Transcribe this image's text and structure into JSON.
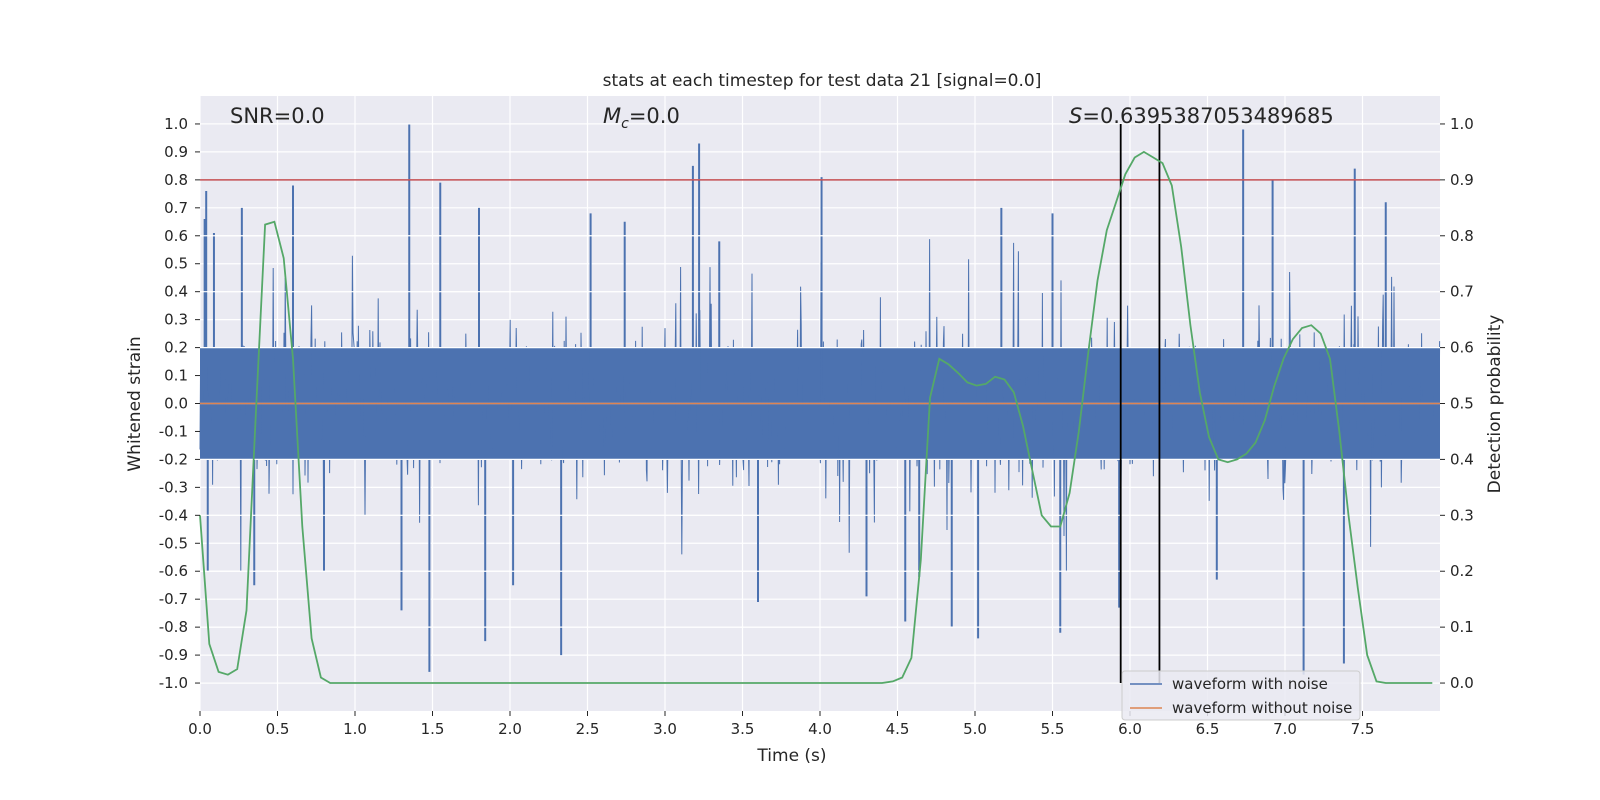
{
  "chart_data": {
    "type": "line",
    "title": "stats at each timestep for test data 21 [signal=0.0]",
    "xlabel": "Time (s)",
    "ylabel_left": "Whitened strain",
    "ylabel_right": "Detection probability",
    "xlim": [
      0.0,
      8.0
    ],
    "ylim_left": [
      -1.1,
      1.1
    ],
    "ylim_right": [
      -0.05,
      1.05
    ],
    "x_ticks": [
      "0.0",
      "0.5",
      "1.0",
      "1.5",
      "2.0",
      "2.5",
      "3.0",
      "3.5",
      "4.0",
      "4.5",
      "5.0",
      "5.5",
      "6.0",
      "6.5",
      "7.0",
      "7.5"
    ],
    "y_ticks_left": [
      "-1.0",
      "-0.9",
      "-0.8",
      "-0.7",
      "-0.6",
      "-0.5",
      "-0.4",
      "-0.3",
      "-0.2",
      "-0.1",
      "0.0",
      "0.1",
      "0.2",
      "0.3",
      "0.4",
      "0.5",
      "0.6",
      "0.7",
      "0.8",
      "0.9",
      "1.0"
    ],
    "y_ticks_right": [
      "0.0",
      "0.1",
      "0.2",
      "0.3",
      "0.4",
      "0.5",
      "0.6",
      "0.7",
      "0.8",
      "0.9",
      "1.0"
    ],
    "grid": true,
    "annotations": {
      "snr": "SNR=0.0",
      "mc_symbol": "M",
      "mc_sub": "c",
      "mc_value": "=0.0",
      "s_symbol": "S",
      "s_value": "=0.6395387053489685"
    },
    "legend": {
      "placement": "lower-right",
      "entries": [
        {
          "label": "waveform with noise",
          "color": "#4c72b0"
        },
        {
          "label": "waveform without noise",
          "color": "#dd8452"
        }
      ]
    },
    "threshold": {
      "axis": "right",
      "value": 0.9,
      "color": "#c44e52"
    },
    "vlines": [
      5.94,
      6.19
    ],
    "noise_series": {
      "name": "waveform with noise",
      "color": "#4c72b0",
      "typical_upper": 0.2,
      "typical_lower": -0.2,
      "peaks": [
        {
          "x": 0.03,
          "y": 0.66
        },
        {
          "x": 0.05,
          "y": -0.6
        },
        {
          "x": 0.09,
          "y": 0.61
        },
        {
          "x": 0.04,
          "y": 0.76
        },
        {
          "x": 0.27,
          "y": 0.7
        },
        {
          "x": 0.35,
          "y": -0.65
        },
        {
          "x": 0.6,
          "y": 0.78
        },
        {
          "x": 0.8,
          "y": -0.6
        },
        {
          "x": 1.35,
          "y": 1.0
        },
        {
          "x": 1.3,
          "y": -0.74
        },
        {
          "x": 1.48,
          "y": -0.96
        },
        {
          "x": 1.55,
          "y": 0.79
        },
        {
          "x": 1.8,
          "y": 0.7
        },
        {
          "x": 1.84,
          "y": -0.85
        },
        {
          "x": 2.02,
          "y": -0.65
        },
        {
          "x": 2.33,
          "y": -0.9
        },
        {
          "x": 2.52,
          "y": 0.68
        },
        {
          "x": 2.74,
          "y": 0.65
        },
        {
          "x": 3.18,
          "y": 0.85
        },
        {
          "x": 3.22,
          "y": 0.93
        },
        {
          "x": 3.35,
          "y": 0.58
        },
        {
          "x": 3.6,
          "y": -0.71
        },
        {
          "x": 4.01,
          "y": 0.81
        },
        {
          "x": 4.3,
          "y": -0.69
        },
        {
          "x": 4.55,
          "y": -0.78
        },
        {
          "x": 4.64,
          "y": -0.62
        },
        {
          "x": 4.85,
          "y": -0.8
        },
        {
          "x": 5.02,
          "y": -0.84
        },
        {
          "x": 5.17,
          "y": 0.7
        },
        {
          "x": 5.55,
          "y": -0.82
        },
        {
          "x": 5.93,
          "y": -0.73
        },
        {
          "x": 5.5,
          "y": 0.68
        },
        {
          "x": 6.73,
          "y": 0.98
        },
        {
          "x": 6.56,
          "y": -0.63
        },
        {
          "x": 6.92,
          "y": 0.8
        },
        {
          "x": 7.12,
          "y": -0.97
        },
        {
          "x": 7.38,
          "y": -0.93
        },
        {
          "x": 7.45,
          "y": 0.84
        },
        {
          "x": 7.65,
          "y": 0.72
        }
      ]
    },
    "clean_series": {
      "name": "waveform without noise",
      "color": "#dd8452",
      "value": 0.0
    },
    "probability_series": {
      "color": "#55a868",
      "x": [
        0.0,
        0.06,
        0.12,
        0.18,
        0.24,
        0.3,
        0.36,
        0.42,
        0.48,
        0.54,
        0.6,
        0.66,
        0.72,
        0.78,
        0.84,
        0.9,
        1.5,
        2.5,
        3.5,
        4.4,
        4.47,
        4.53,
        4.59,
        4.65,
        4.71,
        4.77,
        4.83,
        4.89,
        4.95,
        5.01,
        5.07,
        5.13,
        5.19,
        5.25,
        5.31,
        5.37,
        5.43,
        5.49,
        5.55,
        5.61,
        5.67,
        5.73,
        5.79,
        5.85,
        5.91,
        5.97,
        6.03,
        6.09,
        6.15,
        6.21,
        6.27,
        6.33,
        6.39,
        6.45,
        6.51,
        6.57,
        6.63,
        6.69,
        6.75,
        6.81,
        6.87,
        6.93,
        6.99,
        7.05,
        7.11,
        7.17,
        7.23,
        7.29,
        7.35,
        7.41,
        7.47,
        7.53,
        7.59,
        7.65,
        7.71,
        7.77,
        7.83,
        7.89,
        7.95
      ],
      "y": [
        0.3,
        0.07,
        0.02,
        0.015,
        0.025,
        0.13,
        0.48,
        0.82,
        0.825,
        0.76,
        0.58,
        0.28,
        0.08,
        0.01,
        0.0,
        0.0,
        0.0,
        0.0,
        0.0,
        0.0,
        0.003,
        0.01,
        0.045,
        0.22,
        0.51,
        0.58,
        0.57,
        0.555,
        0.538,
        0.532,
        0.535,
        0.548,
        0.543,
        0.52,
        0.46,
        0.38,
        0.3,
        0.28,
        0.28,
        0.34,
        0.45,
        0.59,
        0.72,
        0.81,
        0.86,
        0.91,
        0.94,
        0.95,
        0.94,
        0.93,
        0.89,
        0.78,
        0.64,
        0.52,
        0.44,
        0.4,
        0.395,
        0.4,
        0.41,
        0.43,
        0.47,
        0.53,
        0.58,
        0.615,
        0.635,
        0.64,
        0.625,
        0.58,
        0.45,
        0.3,
        0.17,
        0.05,
        0.003,
        0.0,
        0.0,
        0.0,
        0.0,
        0.0,
        0.0
      ]
    }
  }
}
